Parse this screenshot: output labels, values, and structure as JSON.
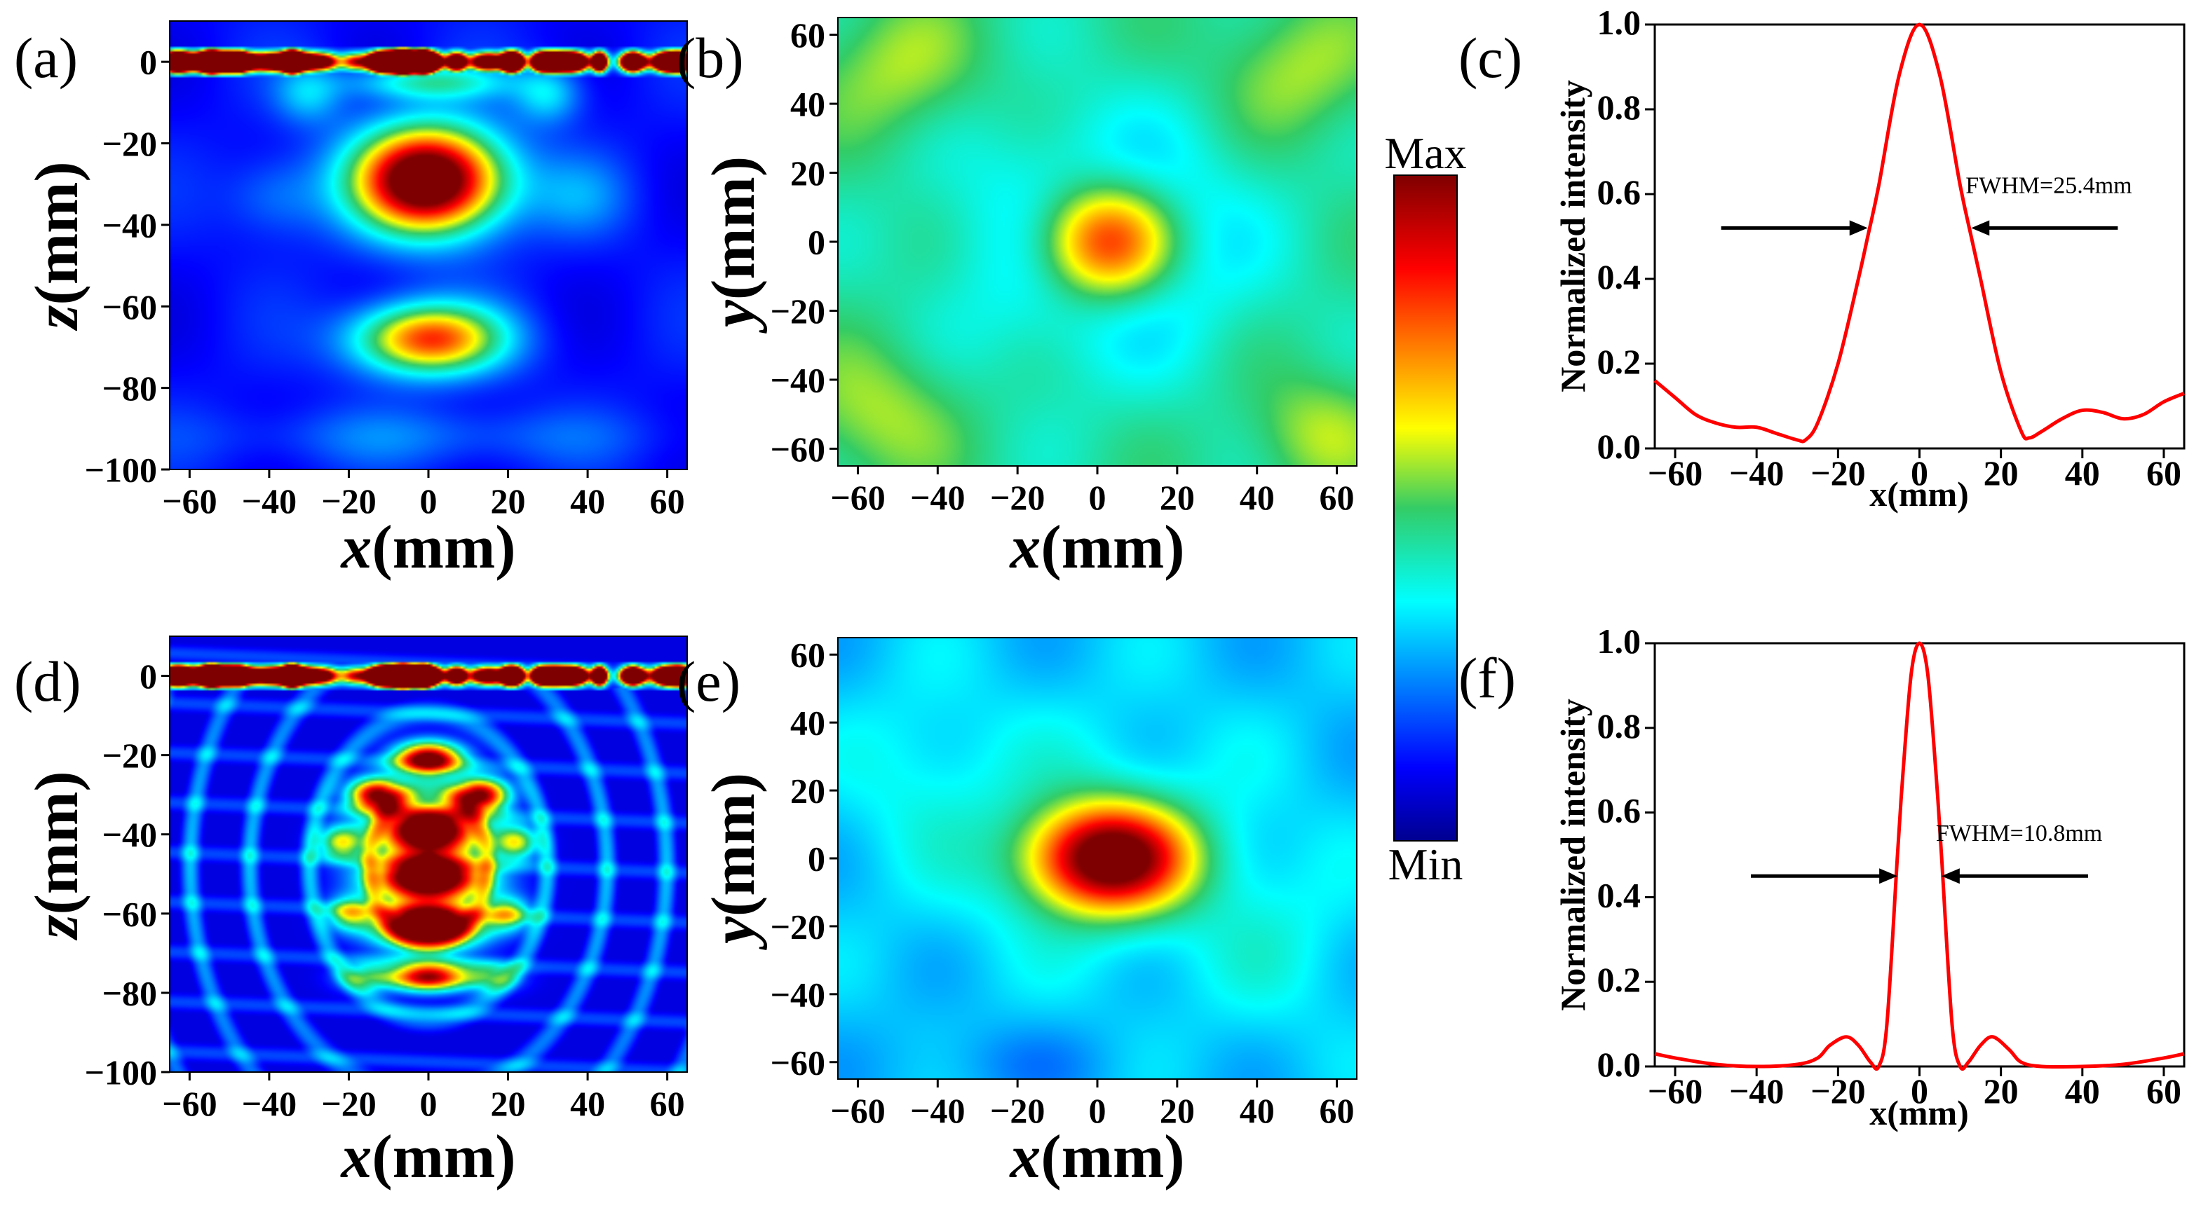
{
  "colors": {
    "jet_low": "#00008f",
    "jet_high": "#7f0000",
    "line": "#ff0000"
  },
  "colorbar": {
    "max_label": "Max",
    "min_label": "Min"
  },
  "chart_data": [
    {
      "id": "a",
      "type": "heatmap",
      "panel_label": "(a)",
      "xlabel_var": "x",
      "xlabel_unit": "(mm)",
      "ylabel_var": "z",
      "ylabel_unit": "(mm)",
      "xlim": [
        -65,
        65
      ],
      "ylim": [
        -100,
        10
      ],
      "xticks": [
        -60,
        -40,
        -20,
        0,
        20,
        40,
        60
      ],
      "yticks": [
        -100,
        -80,
        -60,
        -40,
        -20,
        0
      ],
      "xtick_labels": [
        "−60",
        "−40",
        "−20",
        "0",
        "20",
        "40",
        "60"
      ],
      "ytick_labels": [
        "−100",
        "−80",
        "−60",
        "−40",
        "−20",
        "0"
      ],
      "background_level": 0.12,
      "features": [
        {
          "x": 0,
          "y": -29,
          "sx": 13,
          "sy": 9,
          "amp": 1.1
        },
        {
          "x": 0,
          "y": -68,
          "sx": 13,
          "sy": 6,
          "amp": 0.7
        },
        {
          "x": 0,
          "y": -5,
          "sx": 14,
          "sy": 3,
          "amp": 0.3
        },
        {
          "x": -38,
          "y": -33,
          "sx": 9,
          "sy": 7,
          "amp": 0.12
        },
        {
          "x": 38,
          "y": -33,
          "sx": 9,
          "sy": 7,
          "amp": 0.12
        },
        {
          "x": 30,
          "y": -8,
          "sx": 6,
          "sy": 5,
          "amp": 0.22
        },
        {
          "x": -30,
          "y": -8,
          "sx": 6,
          "sy": 5,
          "amp": 0.18
        },
        {
          "x": 0,
          "y": -92,
          "sx": 40,
          "sy": 5,
          "amp": 0.1
        }
      ],
      "hot_strip_z": 0
    },
    {
      "id": "b",
      "type": "heatmap",
      "panel_label": "(b)",
      "xlabel_var": "x",
      "xlabel_unit": "(mm)",
      "ylabel_var": "y",
      "ylabel_unit": "(mm)",
      "xlim": [
        -65,
        65
      ],
      "ylim": [
        -65,
        65
      ],
      "xticks": [
        -60,
        -40,
        -20,
        0,
        20,
        40,
        60
      ],
      "yticks": [
        -60,
        -40,
        -20,
        0,
        20,
        40,
        60
      ],
      "xtick_labels": [
        "−60",
        "−40",
        "−20",
        "0",
        "20",
        "40",
        "60"
      ],
      "ytick_labels": [
        "−60",
        "−40",
        "−20",
        "0",
        "20",
        "40",
        "60"
      ],
      "background_level": 0.45,
      "features": [
        {
          "x": 2,
          "y": 0,
          "sx": 12,
          "sy": 12,
          "amp": 0.55
        },
        {
          "x": 2,
          "y": 0,
          "sx": 24,
          "sy": 24,
          "amp": -0.22
        },
        {
          "x": -50,
          "y": 50,
          "sx": 14,
          "sy": 14,
          "amp": 0.12
        },
        {
          "x": 50,
          "y": 50,
          "sx": 14,
          "sy": 14,
          "amp": 0.12
        },
        {
          "x": -55,
          "y": -50,
          "sx": 14,
          "sy": 14,
          "amp": 0.12
        },
        {
          "x": 55,
          "y": -55,
          "sx": 12,
          "sy": 12,
          "amp": 0.12
        }
      ]
    },
    {
      "id": "c",
      "type": "line",
      "panel_label": "(c)",
      "xlabel": "x(mm)",
      "ylabel": "Normalized intensity",
      "xlim": [
        -65,
        65
      ],
      "ylim": [
        0,
        1
      ],
      "xticks": [
        -60,
        -40,
        -20,
        0,
        20,
        40,
        60
      ],
      "yticks": [
        0,
        0.2,
        0.4,
        0.6,
        0.8,
        1.0
      ],
      "xtick_labels": [
        "−60",
        "−40",
        "−20",
        "0",
        "20",
        "40",
        "60"
      ],
      "ytick_labels": [
        "0.0",
        "0.2",
        "0.4",
        "0.6",
        "0.8",
        "1.0"
      ],
      "x": [
        -65,
        -60,
        -55,
        -50,
        -45,
        -40,
        -35,
        -30,
        -28,
        -25,
        -20,
        -15,
        -12.7,
        -10,
        -5,
        0,
        5,
        10,
        12.7,
        15,
        20,
        25,
        27,
        30,
        35,
        40,
        45,
        50,
        55,
        60,
        65
      ],
      "y": [
        0.16,
        0.12,
        0.08,
        0.06,
        0.05,
        0.05,
        0.035,
        0.02,
        0.02,
        0.06,
        0.2,
        0.4,
        0.5,
        0.62,
        0.88,
        1.0,
        0.88,
        0.62,
        0.5,
        0.4,
        0.18,
        0.04,
        0.025,
        0.04,
        0.07,
        0.09,
        0.085,
        0.07,
        0.08,
        0.11,
        0.13
      ],
      "annotation": "FWHM=25.4mm",
      "annotation_y": 0.52,
      "fwhm_half_width": 12.7
    },
    {
      "id": "d",
      "type": "heatmap",
      "panel_label": "(d)",
      "xlabel_var": "x",
      "xlabel_unit": "(mm)",
      "ylabel_var": "z",
      "ylabel_unit": "(mm)",
      "xlim": [
        -65,
        65
      ],
      "ylim": [
        -100,
        10
      ],
      "xticks": [
        -60,
        -40,
        -20,
        0,
        20,
        40,
        60
      ],
      "yticks": [
        -100,
        -80,
        -60,
        -40,
        -20,
        0
      ],
      "xtick_labels": [
        "−60",
        "−40",
        "−20",
        "0",
        "20",
        "40",
        "60"
      ],
      "ytick_labels": [
        "−100",
        "−80",
        "−60",
        "−40",
        "−20",
        "0"
      ],
      "background_level": 0.08,
      "features": [
        {
          "x": 0,
          "y": -21,
          "sx": 6,
          "sy": 3,
          "amp": 1.0
        },
        {
          "x": -13,
          "y": -30,
          "sx": 5,
          "sy": 3,
          "amp": 0.9
        },
        {
          "x": 13,
          "y": -30,
          "sx": 5,
          "sy": 3,
          "amp": 0.9
        },
        {
          "x": 0,
          "y": -39,
          "sx": 9,
          "sy": 4.5,
          "amp": 1.2
        },
        {
          "x": 0,
          "y": -51,
          "sx": 10,
          "sy": 4,
          "amp": 1.2
        },
        {
          "x": 0,
          "y": -63,
          "sx": 9,
          "sy": 4,
          "amp": 1.2
        },
        {
          "x": 0,
          "y": -76,
          "sx": 7,
          "sy": 2.5,
          "amp": 0.9
        },
        {
          "x": -22,
          "y": -42,
          "sx": 4,
          "sy": 3,
          "amp": 0.5
        },
        {
          "x": 22,
          "y": -42,
          "sx": 4,
          "sy": 3,
          "amp": 0.5
        },
        {
          "x": -20,
          "y": -60,
          "sx": 4,
          "sy": 3,
          "amp": 0.45
        },
        {
          "x": 20,
          "y": -60,
          "sx": 4,
          "sy": 3,
          "amp": 0.45
        },
        {
          "x": -16,
          "y": -76,
          "sx": 5,
          "sy": 2.5,
          "amp": 0.35
        },
        {
          "x": 16,
          "y": -76,
          "sx": 5,
          "sy": 2.5,
          "amp": 0.35
        }
      ],
      "fringes": true,
      "hot_strip_z": 0
    },
    {
      "id": "e",
      "type": "heatmap",
      "panel_label": "(e)",
      "xlabel_var": "x",
      "xlabel_unit": "(mm)",
      "ylabel_var": "y",
      "ylabel_unit": "(mm)",
      "xlim": [
        -65,
        65
      ],
      "ylim": [
        -65,
        65
      ],
      "xticks": [
        -60,
        -40,
        -20,
        0,
        20,
        40,
        60
      ],
      "yticks": [
        -60,
        -40,
        -20,
        0,
        20,
        40,
        60
      ],
      "xtick_labels": [
        "−60",
        "−40",
        "−20",
        "0",
        "20",
        "40",
        "60"
      ],
      "ytick_labels": [
        "−60",
        "−40",
        "−20",
        "0",
        "20",
        "40",
        "60"
      ],
      "background_level": 0.3,
      "features": [
        {
          "x": 3,
          "y": 0,
          "sx": 14,
          "sy": 11,
          "amp": 0.75
        },
        {
          "x": 0,
          "y": 5,
          "sx": 30,
          "sy": 28,
          "amp": 0.08
        },
        {
          "x": -45,
          "y": 25,
          "sx": 14,
          "sy": 20,
          "amp": 0.06
        },
        {
          "x": 45,
          "y": -25,
          "sx": 16,
          "sy": 20,
          "amp": 0.06
        },
        {
          "x": -20,
          "y": -60,
          "sx": 20,
          "sy": 8,
          "amp": -0.05
        }
      ]
    },
    {
      "id": "f",
      "type": "line",
      "panel_label": "(f)",
      "xlabel": "x(mm)",
      "ylabel": "Normalized intensity",
      "xlim": [
        -65,
        65
      ],
      "ylim": [
        0,
        1
      ],
      "xticks": [
        -60,
        -40,
        -20,
        0,
        20,
        40,
        60
      ],
      "yticks": [
        0,
        0.2,
        0.4,
        0.6,
        0.8,
        1.0
      ],
      "xtick_labels": [
        "−60",
        "−40",
        "−20",
        "0",
        "20",
        "40",
        "60"
      ],
      "ytick_labels": [
        "0.0",
        "0.2",
        "0.4",
        "0.6",
        "0.8",
        "1.0"
      ],
      "x": [
        -65,
        -60,
        -50,
        -40,
        -30,
        -25,
        -22,
        -18,
        -15,
        -12,
        -10,
        -8,
        -5.4,
        -4,
        -2,
        0,
        2,
        4,
        5.4,
        8,
        10,
        12,
        15,
        18,
        22,
        25,
        30,
        40,
        50,
        60,
        65
      ],
      "y": [
        0.03,
        0.02,
        0.005,
        0.0,
        0.005,
        0.02,
        0.05,
        0.07,
        0.05,
        0.01,
        0.0,
        0.1,
        0.5,
        0.7,
        0.93,
        1.0,
        0.93,
        0.7,
        0.5,
        0.1,
        0.0,
        0.01,
        0.05,
        0.07,
        0.04,
        0.01,
        0.0,
        0.0,
        0.005,
        0.02,
        0.03
      ],
      "annotation": "FWHM=10.8mm",
      "annotation_y": 0.45,
      "fwhm_half_width": 5.4
    }
  ]
}
